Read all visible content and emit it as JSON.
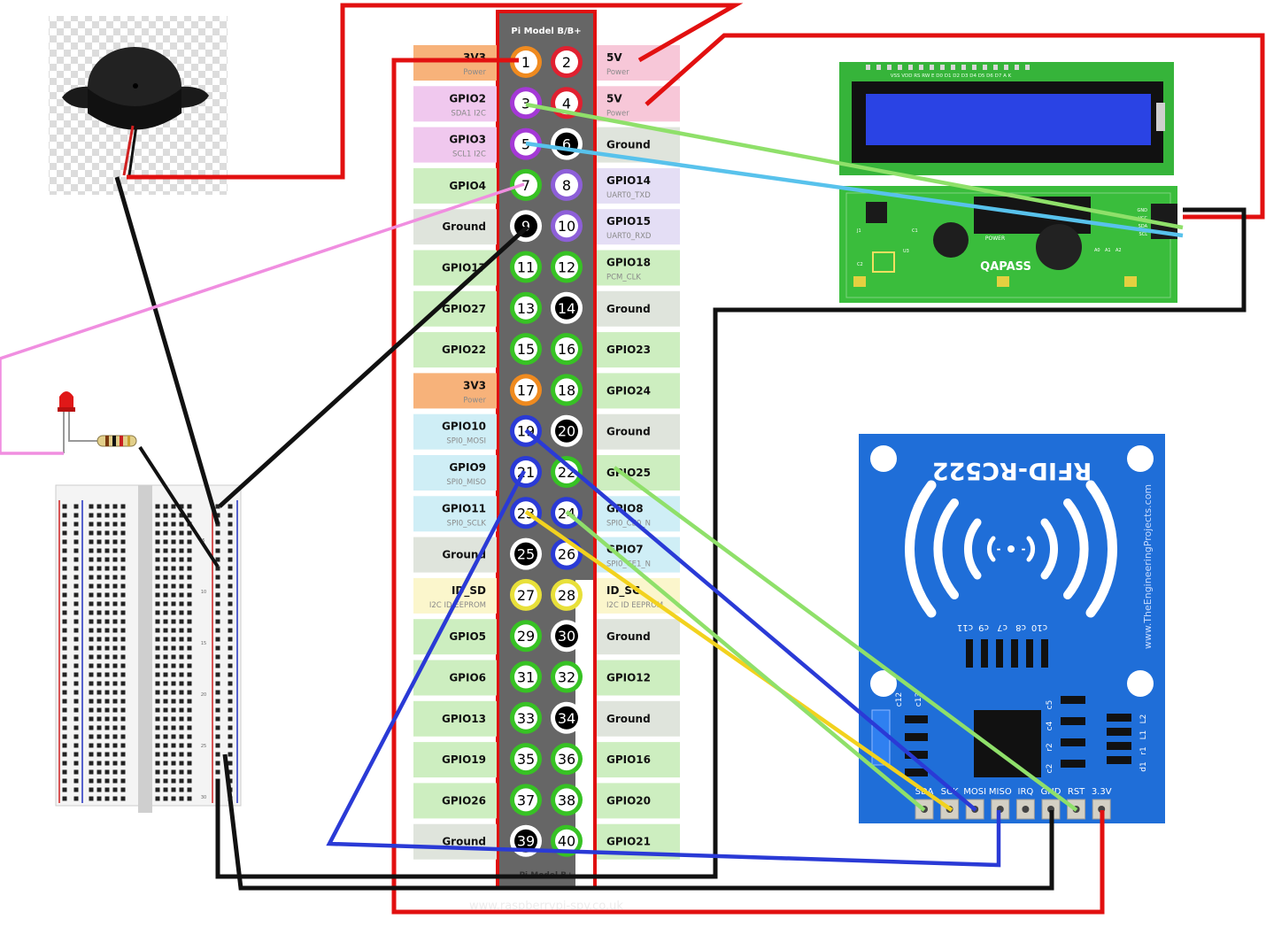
{
  "header": {
    "title": "Pi Model B/B+",
    "footer": "Pi Model B+"
  },
  "watermark": "www.raspberrypi-spy.co.uk",
  "colors": {
    "power3v3": "#f7b27a",
    "power5v": "#f7c7d8",
    "i2c": "#f0c8ee",
    "gpio": "#cdeec0",
    "ground": "#dfe4dc",
    "uart": "#e4def5",
    "spi": "#cfeef6",
    "eeprom": "#fbf6cc"
  },
  "pins": [
    {
      "num": "1",
      "ring": "#ef8a1f",
      "fill": "#ffffff",
      "text": "#000000"
    },
    {
      "num": "2",
      "ring": "#e02030",
      "fill": "#ffffff",
      "text": "#000000"
    },
    {
      "num": "3",
      "ring": "#a438d6",
      "fill": "#ffffff",
      "text": "#000000"
    },
    {
      "num": "4",
      "ring": "#e02030",
      "fill": "#ffffff",
      "text": "#000000"
    },
    {
      "num": "5",
      "ring": "#a438d6",
      "fill": "#ffffff",
      "text": "#000000"
    },
    {
      "num": "6",
      "ring": "#ffffff",
      "fill": "#000000",
      "text": "#ffffff"
    },
    {
      "num": "7",
      "ring": "#37c224",
      "fill": "#ffffff",
      "text": "#000000"
    },
    {
      "num": "8",
      "ring": "#8d5fd8",
      "fill": "#ffffff",
      "text": "#000000"
    },
    {
      "num": "9",
      "ring": "#ffffff",
      "fill": "#000000",
      "text": "#ffffff"
    },
    {
      "num": "10",
      "ring": "#8d5fd8",
      "fill": "#ffffff",
      "text": "#000000"
    },
    {
      "num": "11",
      "ring": "#37c224",
      "fill": "#ffffff",
      "text": "#000000"
    },
    {
      "num": "12",
      "ring": "#37c224",
      "fill": "#ffffff",
      "text": "#000000"
    },
    {
      "num": "13",
      "ring": "#37c224",
      "fill": "#ffffff",
      "text": "#000000"
    },
    {
      "num": "14",
      "ring": "#ffffff",
      "fill": "#000000",
      "text": "#ffffff"
    },
    {
      "num": "15",
      "ring": "#37c224",
      "fill": "#ffffff",
      "text": "#000000"
    },
    {
      "num": "16",
      "ring": "#37c224",
      "fill": "#ffffff",
      "text": "#000000"
    },
    {
      "num": "17",
      "ring": "#ef8a1f",
      "fill": "#ffffff",
      "text": "#000000"
    },
    {
      "num": "18",
      "ring": "#37c224",
      "fill": "#ffffff",
      "text": "#000000"
    },
    {
      "num": "19",
      "ring": "#2a3ad6",
      "fill": "#ffffff",
      "text": "#000000"
    },
    {
      "num": "20",
      "ring": "#ffffff",
      "fill": "#000000",
      "text": "#ffffff"
    },
    {
      "num": "21",
      "ring": "#2a3ad6",
      "fill": "#ffffff",
      "text": "#000000"
    },
    {
      "num": "22",
      "ring": "#37c224",
      "fill": "#ffffff",
      "text": "#000000"
    },
    {
      "num": "23",
      "ring": "#2a3ad6",
      "fill": "#ffffff",
      "text": "#000000"
    },
    {
      "num": "24",
      "ring": "#2a3ad6",
      "fill": "#ffffff",
      "text": "#000000"
    },
    {
      "num": "25",
      "ring": "#ffffff",
      "fill": "#000000",
      "text": "#ffffff"
    },
    {
      "num": "26",
      "ring": "#2a3ad6",
      "fill": "#ffffff",
      "text": "#000000"
    },
    {
      "num": "27",
      "ring": "#e8e03a",
      "fill": "#ffffff",
      "text": "#000000"
    },
    {
      "num": "28",
      "ring": "#e8e03a",
      "fill": "#ffffff",
      "text": "#000000"
    },
    {
      "num": "29",
      "ring": "#37c224",
      "fill": "#ffffff",
      "text": "#000000"
    },
    {
      "num": "30",
      "ring": "#ffffff",
      "fill": "#000000",
      "text": "#ffffff"
    },
    {
      "num": "31",
      "ring": "#37c224",
      "fill": "#ffffff",
      "text": "#000000"
    },
    {
      "num": "32",
      "ring": "#37c224",
      "fill": "#ffffff",
      "text": "#000000"
    },
    {
      "num": "33",
      "ring": "#37c224",
      "fill": "#ffffff",
      "text": "#000000"
    },
    {
      "num": "34",
      "ring": "#ffffff",
      "fill": "#000000",
      "text": "#ffffff"
    },
    {
      "num": "35",
      "ring": "#37c224",
      "fill": "#ffffff",
      "text": "#000000"
    },
    {
      "num": "36",
      "ring": "#37c224",
      "fill": "#ffffff",
      "text": "#000000"
    },
    {
      "num": "37",
      "ring": "#37c224",
      "fill": "#ffffff",
      "text": "#000000"
    },
    {
      "num": "38",
      "ring": "#37c224",
      "fill": "#ffffff",
      "text": "#000000"
    },
    {
      "num": "39",
      "ring": "#ffffff",
      "fill": "#000000",
      "text": "#ffffff"
    },
    {
      "num": "40",
      "ring": "#37c224",
      "fill": "#ffffff",
      "text": "#000000"
    }
  ],
  "left_labels": [
    {
      "name": "3V3",
      "sub": "Power",
      "color": "#f7b27a"
    },
    {
      "name": "GPIO2",
      "sub": "SDA1 I2C",
      "color": "#f0c8ee"
    },
    {
      "name": "GPIO3",
      "sub": "SCL1 I2C",
      "color": "#f0c8ee"
    },
    {
      "name": "GPIO4",
      "sub": "",
      "color": "#cdeec0"
    },
    {
      "name": "Ground",
      "sub": "",
      "color": "#dfe4dc"
    },
    {
      "name": "GPIO17",
      "sub": "",
      "color": "#cdeec0"
    },
    {
      "name": "GPIO27",
      "sub": "",
      "color": "#cdeec0"
    },
    {
      "name": "GPIO22",
      "sub": "",
      "color": "#cdeec0"
    },
    {
      "name": "3V3",
      "sub": "Power",
      "color": "#f7b27a"
    },
    {
      "name": "GPIO10",
      "sub": "SPI0_MOSI",
      "color": "#cfeef6"
    },
    {
      "name": "GPIO9",
      "sub": "SPI0_MISO",
      "color": "#cfeef6"
    },
    {
      "name": "GPIO11",
      "sub": "SPI0_SCLK",
      "color": "#cfeef6"
    },
    {
      "name": "Ground",
      "sub": "",
      "color": "#dfe4dc"
    },
    {
      "name": "ID_SD",
      "sub": "I2C ID EEPROM",
      "color": "#fbf6cc"
    },
    {
      "name": "GPIO5",
      "sub": "",
      "color": "#cdeec0"
    },
    {
      "name": "GPIO6",
      "sub": "",
      "color": "#cdeec0"
    },
    {
      "name": "GPIO13",
      "sub": "",
      "color": "#cdeec0"
    },
    {
      "name": "GPIO19",
      "sub": "",
      "color": "#cdeec0"
    },
    {
      "name": "GPIO26",
      "sub": "",
      "color": "#cdeec0"
    },
    {
      "name": "Ground",
      "sub": "",
      "color": "#dfe4dc"
    }
  ],
  "right_labels": [
    {
      "name": "5V",
      "sub": "Power",
      "color": "#f7c7d8"
    },
    {
      "name": "5V",
      "sub": "Power",
      "color": "#f7c7d8"
    },
    {
      "name": "Ground",
      "sub": "",
      "color": "#dfe4dc"
    },
    {
      "name": "GPIO14",
      "sub": "UART0_TXD",
      "color": "#e4def5"
    },
    {
      "name": "GPIO15",
      "sub": "UART0_RXD",
      "color": "#e4def5"
    },
    {
      "name": "GPIO18",
      "sub": "PCM_CLK",
      "color": "#cdeec0"
    },
    {
      "name": "Ground",
      "sub": "",
      "color": "#dfe4dc"
    },
    {
      "name": "GPIO23",
      "sub": "",
      "color": "#cdeec0"
    },
    {
      "name": "GPIO24",
      "sub": "",
      "color": "#cdeec0"
    },
    {
      "name": "Ground",
      "sub": "",
      "color": "#dfe4dc"
    },
    {
      "name": "GPIO25",
      "sub": "",
      "color": "#cdeec0"
    },
    {
      "name": "GPIO8",
      "sub": "SPI0_CE0_N",
      "color": "#cfeef6"
    },
    {
      "name": "GPIO7",
      "sub": "SPI0_CE1_N",
      "color": "#cfeef6"
    },
    {
      "name": "ID_SC",
      "sub": "I2C ID EEPROM",
      "color": "#fbf6cc"
    },
    {
      "name": "Ground",
      "sub": "",
      "color": "#dfe4dc"
    },
    {
      "name": "GPIO12",
      "sub": "",
      "color": "#cdeec0"
    },
    {
      "name": "Ground",
      "sub": "",
      "color": "#dfe4dc"
    },
    {
      "name": "GPIO16",
      "sub": "",
      "color": "#cdeec0"
    },
    {
      "name": "GPIO20",
      "sub": "",
      "color": "#cdeec0"
    },
    {
      "name": "GPIO21",
      "sub": "",
      "color": "#cdeec0"
    }
  ],
  "lcd": {
    "pin_header": "VSS VDD RS RW E D0 D1 D2 D3 D4 D5 D6 D7 A K",
    "i2c_pins": [
      "GND",
      "VCC",
      "SDA",
      "SCL"
    ],
    "brand": "QAPASS",
    "power_label": "POWER",
    "addr_labels": [
      "A0",
      "A1",
      "A2"
    ],
    "chip_labels": [
      "J1",
      "C1",
      "C2",
      "U3"
    ]
  },
  "rfid": {
    "title": "RFID-RC522",
    "credit": "www.TheEngineeringProjects.com",
    "pin_labels": [
      "SDA",
      "SCK",
      "MOSI",
      "MISO",
      "IRQ",
      "GND",
      "RST",
      "3.3V"
    ],
    "cap_labels": [
      "c11",
      "c9",
      "c7",
      "c8",
      "c10"
    ],
    "left_comp_labels": [
      "c12",
      "c13"
    ],
    "right_comp_labels": [
      "c5",
      "c4",
      "r2",
      "c2"
    ],
    "far_right_labels": [
      "L2",
      "L1",
      "r1",
      "d1"
    ]
  },
  "breadboard": {
    "row_marks": [
      "5",
      "10",
      "15",
      "20",
      "25",
      "30"
    ]
  }
}
